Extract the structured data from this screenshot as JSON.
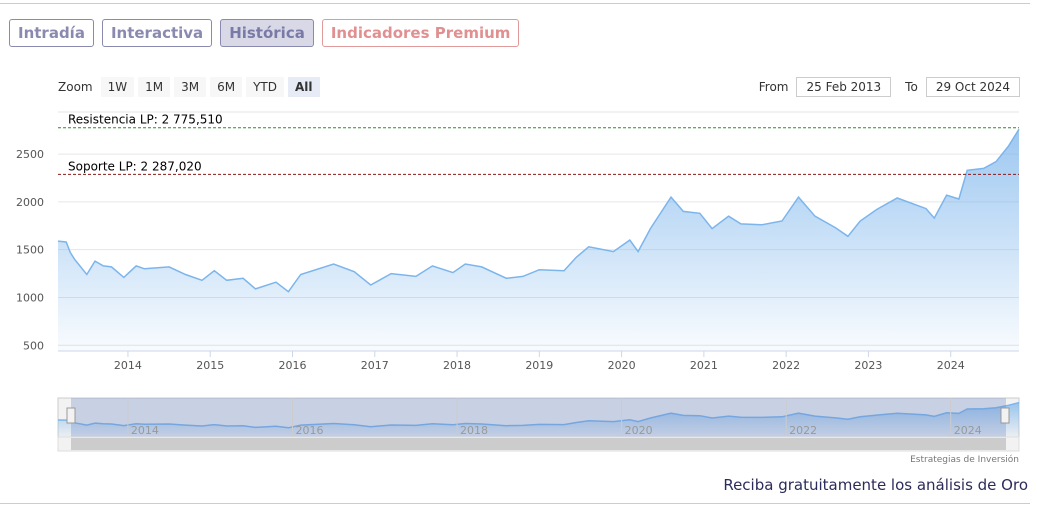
{
  "tabs": [
    "Intradía",
    "Interactiva",
    "Histórica",
    "Indicadores Premium"
  ],
  "range_selector": {
    "zoom_label": "Zoom",
    "buttons": [
      "1W",
      "1M",
      "3M",
      "6M",
      "YTD",
      "All"
    ],
    "from_label": "From",
    "from_value": "25 Feb 2013",
    "to_label": "To",
    "to_value": "29 Oct 2024"
  },
  "chart_data": {
    "type": "area",
    "x": [
      2013.15,
      2013.25,
      2013.3,
      2013.35,
      2013.5,
      2013.6,
      2013.7,
      2013.8,
      2013.95,
      2014.1,
      2014.2,
      2014.5,
      2014.7,
      2014.9,
      2015.05,
      2015.2,
      2015.4,
      2015.55,
      2015.8,
      2015.95,
      2016.1,
      2016.5,
      2016.75,
      2016.95,
      2017.2,
      2017.5,
      2017.7,
      2017.95,
      2018.1,
      2018.3,
      2018.6,
      2018.8,
      2019.0,
      2019.3,
      2019.45,
      2019.6,
      2019.9,
      2020.1,
      2020.2,
      2020.35,
      2020.6,
      2020.75,
      2020.95,
      2021.1,
      2021.3,
      2021.45,
      2021.7,
      2021.95,
      2022.15,
      2022.35,
      2022.6,
      2022.75,
      2022.9,
      2023.1,
      2023.35,
      2023.7,
      2023.8,
      2023.95,
      2024.1,
      2024.2,
      2024.4,
      2024.55,
      2024.7,
      2024.83
    ],
    "series": [
      {
        "color": "#7cb5ec",
        "values": [
          1590,
          1580,
          1470,
          1400,
          1240,
          1380,
          1330,
          1320,
          1210,
          1330,
          1300,
          1320,
          1240,
          1180,
          1280,
          1180,
          1200,
          1090,
          1160,
          1060,
          1240,
          1350,
          1270,
          1130,
          1250,
          1220,
          1330,
          1260,
          1350,
          1320,
          1200,
          1220,
          1290,
          1280,
          1420,
          1530,
          1480,
          1600,
          1480,
          1720,
          2050,
          1900,
          1880,
          1720,
          1850,
          1770,
          1760,
          1800,
          2050,
          1850,
          1730,
          1640,
          1800,
          1920,
          2040,
          1930,
          1830,
          2070,
          2030,
          2330,
          2350,
          2420,
          2580,
          2760
        ]
      }
    ],
    "xlim": [
      2013.15,
      2024.83
    ],
    "xticks": [
      2014,
      2015,
      2016,
      2017,
      2018,
      2019,
      2020,
      2021,
      2022,
      2023,
      2024
    ],
    "ylim": [
      440,
      2940
    ],
    "yticks": [
      500,
      1000,
      1500,
      2000,
      2500
    ],
    "grid": true,
    "plot_lines": [
      {
        "label": "Resistencia LP: 2 775,510",
        "value": 2775.51,
        "color": "#2e8b2e"
      },
      {
        "label": "Soporte LP: 2 287,020",
        "value": 2287.02,
        "color": "#8b1a1a"
      }
    ],
    "credits": "Estrategias de Inversión"
  },
  "footer": "Reciba gratuitamente los análisis de Oro"
}
